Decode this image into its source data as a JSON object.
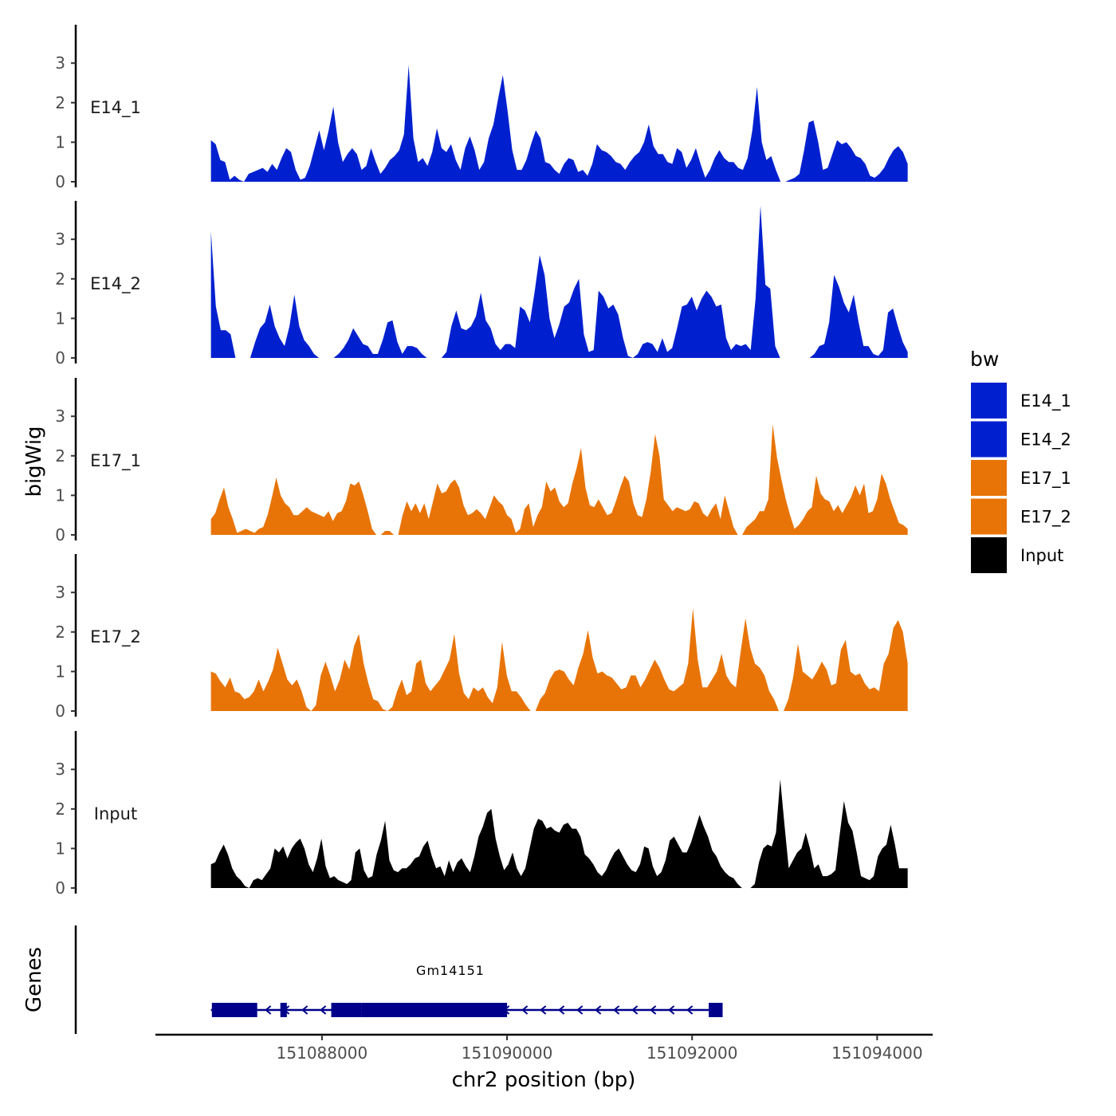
{
  "chart_data": {
    "type": "area",
    "title": "",
    "xlabel": "chr2 position (bp)",
    "ylabel": "bigWig",
    "genes_label": "Genes",
    "xlim": [
      151086200,
      151094600
    ],
    "x_ticks": [
      151088000,
      151090000,
      151092000,
      151094000
    ],
    "x_tick_labels": [
      "151088000",
      "151090000",
      "151092000",
      "151094000"
    ],
    "ylim": [
      0,
      4
    ],
    "y_ticks": [
      0,
      1,
      2,
      3
    ],
    "y_tick_labels": [
      "0",
      "1",
      "2",
      "3"
    ],
    "x_start": 151086800,
    "x_end": 151094330,
    "legend": {
      "title": "bw",
      "position": "right"
    },
    "series": [
      {
        "name": "E14_1",
        "color": "#0020D0",
        "values": [
          1.05,
          0.95,
          0.55,
          0.5,
          0.05,
          0.15,
          0.05,
          0,
          0.2,
          0.25,
          0.3,
          0.35,
          0.25,
          0.45,
          0.3,
          0.6,
          0.85,
          0.75,
          0.3,
          0.05,
          0.1,
          0.4,
          0.85,
          1.3,
          0.8,
          1.3,
          1.9,
          1.0,
          0.5,
          0.7,
          0.85,
          0.7,
          0.3,
          0.4,
          0.85,
          0.5,
          0.2,
          0.35,
          0.55,
          0.65,
          0.8,
          1.2,
          2.95,
          1.1,
          0.5,
          0.6,
          0.4,
          0.75,
          1.35,
          0.85,
          0.75,
          0.95,
          0.55,
          0.3,
          0.85,
          1.15,
          0.8,
          0.3,
          0.5,
          1.1,
          1.45,
          2.1,
          2.7,
          1.8,
          0.8,
          0.3,
          0.3,
          0.55,
          0.95,
          1.3,
          1.1,
          0.5,
          0.45,
          0.3,
          0.2,
          0.45,
          0.6,
          0.55,
          0.25,
          0.3,
          0.15,
          0.45,
          0.95,
          0.8,
          0.75,
          0.65,
          0.5,
          0.45,
          0.3,
          0.5,
          0.65,
          0.75,
          1.0,
          1.45,
          0.9,
          0.7,
          0.7,
          0.5,
          0.45,
          0.85,
          0.75,
          0.35,
          0.55,
          0.85,
          0.45,
          0.1,
          0.3,
          0.6,
          0.8,
          0.6,
          0.5,
          0.5,
          0.35,
          0.3,
          0.6,
          1.3,
          2.4,
          1.0,
          0.55,
          0.65,
          0.3,
          0,
          0,
          0.05,
          0.1,
          0.2,
          0.8,
          1.5,
          1.55,
          1.0,
          0.3,
          0.35,
          0.7,
          1.05,
          0.95,
          1.0,
          0.85,
          0.65,
          0.6,
          0.45,
          0.15,
          0.1,
          0.2,
          0.35,
          0.6,
          0.8,
          0.9,
          0.75,
          0.45
        ]
      },
      {
        "name": "E14_2",
        "color": "#0020D0",
        "values": [
          3.2,
          1.3,
          0.7,
          0.7,
          0.6,
          0,
          0,
          0,
          0,
          0.4,
          0.75,
          0.9,
          1.35,
          0.8,
          0.5,
          0.3,
          0.8,
          1.6,
          0.8,
          0.45,
          0.3,
          0.1,
          0,
          0,
          0,
          0,
          0.1,
          0.25,
          0.45,
          0.75,
          0.55,
          0.35,
          0.3,
          0.1,
          0.1,
          0.45,
          0.9,
          0.95,
          0.4,
          0.1,
          0.3,
          0.3,
          0.25,
          0.1,
          0,
          0,
          0,
          0,
          0.15,
          0.8,
          1.2,
          0.75,
          0.7,
          0.8,
          1.05,
          1.65,
          0.95,
          0.75,
          0.35,
          0.2,
          0.35,
          0.35,
          0.25,
          1.3,
          1.2,
          0.9,
          1.7,
          2.6,
          2.1,
          1.0,
          0.5,
          0.85,
          1.3,
          1.4,
          1.75,
          2.0,
          0.6,
          0.15,
          0.2,
          1.7,
          1.55,
          1.25,
          1.35,
          1.1,
          0.5,
          0.05,
          0,
          0.1,
          0.35,
          0.4,
          0.35,
          0.15,
          0.5,
          0.15,
          0.25,
          0.75,
          1.3,
          1.35,
          1.55,
          1.2,
          1.5,
          1.7,
          1.55,
          1.3,
          1.35,
          0.5,
          0.2,
          0.35,
          0.3,
          0.35,
          0.2,
          1.5,
          3.85,
          1.85,
          1.75,
          0.3,
          0,
          0,
          0,
          0,
          0,
          0,
          0,
          0.1,
          0.3,
          0.35,
          0.9,
          2.1,
          1.8,
          1.4,
          1.15,
          1.6,
          0.9,
          0.3,
          0.3,
          0.1,
          0.05,
          0.2,
          1.15,
          1.25,
          0.8,
          0.4,
          0.15
        ]
      },
      {
        "name": "E17_1",
        "color": "#E87407",
        "values": [
          0.4,
          0.55,
          0.9,
          1.2,
          0.7,
          0.4,
          0.05,
          0.1,
          0.15,
          0.1,
          0.05,
          0.15,
          0.2,
          0.5,
          0.95,
          1.45,
          1.0,
          0.8,
          0.7,
          0.5,
          0.5,
          0.6,
          0.7,
          0.6,
          0.55,
          0.5,
          0.45,
          0.6,
          0.35,
          0.55,
          0.6,
          0.85,
          1.3,
          1.25,
          1.35,
          1.0,
          0.6,
          0.15,
          0,
          0,
          0.1,
          0.1,
          0,
          0,
          0.5,
          0.85,
          0.6,
          0.8,
          0.55,
          0.8,
          0.4,
          0.85,
          1.3,
          1.05,
          1.1,
          1.3,
          1.4,
          1.2,
          0.75,
          0.5,
          0.55,
          0.65,
          0.55,
          0.4,
          0.7,
          1.0,
          0.85,
          0.75,
          0.5,
          0.4,
          0.05,
          0.15,
          0.65,
          0.8,
          0.2,
          0.5,
          0.7,
          1.35,
          1.1,
          1.2,
          0.85,
          0.7,
          0.8,
          1.3,
          1.7,
          2.2,
          1.2,
          0.75,
          0.7,
          0.9,
          0.7,
          0.5,
          0.55,
          0.85,
          1.2,
          1.5,
          1.35,
          0.8,
          0.5,
          0.45,
          0.9,
          1.6,
          2.55,
          2.0,
          0.9,
          0.75,
          0.6,
          0.7,
          0.65,
          0.6,
          0.65,
          0.85,
          0.8,
          0.55,
          0.45,
          0.65,
          0.8,
          0.4,
          1.0,
          0.6,
          0.2,
          0,
          0,
          0.2,
          0.3,
          0.4,
          0.6,
          0.6,
          0.9,
          2.8,
          1.95,
          1.4,
          0.9,
          0.5,
          0.15,
          0.25,
          0.4,
          0.6,
          0.7,
          1.5,
          1.05,
          0.9,
          0.85,
          0.6,
          0.75,
          0.55,
          0.75,
          0.95,
          1.25,
          1.0,
          1.3,
          0.55,
          0.6,
          0.9,
          1.55,
          1.3,
          0.9,
          0.6,
          0.3,
          0.25,
          0.15
        ]
      },
      {
        "name": "E17_2",
        "color": "#E87407",
        "values": [
          1.0,
          0.95,
          0.75,
          0.6,
          0.85,
          0.5,
          0.45,
          0.3,
          0.35,
          0.5,
          0.8,
          0.5,
          0.75,
          1.05,
          1.6,
          1.2,
          0.8,
          0.65,
          0.8,
          0.5,
          0.1,
          0,
          0.15,
          0.9,
          1.25,
          0.9,
          0.5,
          0.8,
          1.3,
          1.05,
          1.65,
          1.95,
          1.2,
          0.7,
          0.3,
          0.25,
          0.05,
          0,
          0.1,
          0.5,
          0.8,
          0.4,
          0.5,
          1.2,
          1.3,
          0.7,
          0.5,
          0.65,
          0.8,
          1.05,
          1.3,
          1.95,
          0.95,
          0.45,
          0.3,
          0.6,
          0.5,
          0.6,
          0.35,
          0.2,
          0.6,
          1.75,
          0.9,
          0.5,
          0.5,
          0.35,
          0.15,
          0,
          0,
          0.3,
          0.45,
          0.8,
          1.0,
          1.05,
          1.0,
          0.8,
          0.65,
          1.1,
          1.45,
          2.05,
          1.35,
          0.95,
          1.0,
          0.9,
          0.85,
          0.7,
          0.55,
          0.6,
          0.9,
          0.9,
          0.6,
          0.8,
          1.05,
          1.3,
          1.1,
          0.8,
          0.55,
          0.5,
          0.6,
          0.7,
          1.2,
          2.6,
          1.3,
          0.6,
          0.6,
          0.8,
          1.0,
          1.45,
          0.9,
          0.7,
          0.6,
          1.5,
          2.35,
          1.6,
          1.2,
          1.1,
          0.9,
          0.5,
          0.3,
          0,
          0,
          0.3,
          0.85,
          1.7,
          1.0,
          0.9,
          0.8,
          1.0,
          1.25,
          1.05,
          0.65,
          0.7,
          1.55,
          1.8,
          1.0,
          0.9,
          0.95,
          0.7,
          0.55,
          0.6,
          0.5,
          1.2,
          1.45,
          2.1,
          2.3,
          2.0,
          1.2
        ]
      },
      {
        "name": "Input",
        "color": "#000000",
        "values": [
          0.6,
          0.65,
          0.9,
          1.1,
          0.85,
          0.5,
          0.3,
          0.2,
          0.05,
          0,
          0.2,
          0.25,
          0.2,
          0.35,
          0.5,
          1.0,
          0.9,
          1.05,
          0.75,
          1.0,
          1.15,
          1.25,
          1.0,
          0.6,
          0.4,
          0.75,
          1.25,
          0.55,
          0.25,
          0.3,
          0.2,
          0.15,
          0.1,
          0.2,
          0.9,
          1.0,
          0.45,
          0.25,
          0.3,
          0.85,
          1.2,
          1.7,
          0.7,
          0.45,
          0.4,
          0.5,
          0.5,
          0.6,
          0.75,
          0.8,
          1.05,
          1.2,
          0.8,
          0.5,
          0.55,
          0.3,
          0.7,
          0.4,
          0.65,
          0.75,
          0.55,
          0.4,
          0.8,
          1.3,
          1.55,
          1.9,
          2.0,
          1.25,
          0.8,
          0.45,
          0.6,
          0.9,
          0.5,
          0.3,
          0.5,
          1.0,
          1.5,
          1.75,
          1.7,
          1.5,
          1.55,
          1.45,
          1.4,
          1.6,
          1.65,
          1.5,
          1.5,
          1.3,
          0.85,
          0.75,
          0.6,
          0.4,
          0.3,
          0.45,
          0.7,
          0.9,
          1.0,
          0.8,
          0.6,
          0.45,
          0.4,
          0.6,
          1.05,
          1.0,
          0.55,
          0.3,
          0.4,
          0.7,
          1.2,
          1.3,
          1.1,
          0.9,
          0.9,
          1.15,
          1.5,
          1.85,
          1.55,
          1.3,
          0.95,
          0.8,
          0.55,
          0.4,
          0.3,
          0.25,
          0.1,
          0,
          0,
          0,
          0.1,
          0.65,
          1.0,
          1.1,
          1.05,
          1.4,
          2.75,
          1.6,
          0.5,
          0.7,
          0.9,
          1.0,
          1.4,
          1.0,
          0.5,
          0.6,
          0.3,
          0.3,
          0.35,
          0.45,
          1.35,
          2.2,
          1.65,
          1.45,
          0.9,
          0.3,
          0.25,
          0.2,
          0.3,
          0.8,
          1.0,
          1.1,
          1.6,
          1.1,
          0.5,
          0.5,
          0.5
        ]
      }
    ],
    "gene": {
      "name": "Gm14151",
      "strand": "-",
      "start": 151086800,
      "end": 151092300,
      "color": "#00008B",
      "exons": [
        [
          151086810,
          151087300
        ],
        [
          151087550,
          151087620
        ],
        [
          151088100,
          151088430
        ],
        [
          151088430,
          151090000
        ],
        [
          151092180,
          151092330
        ]
      ]
    }
  }
}
